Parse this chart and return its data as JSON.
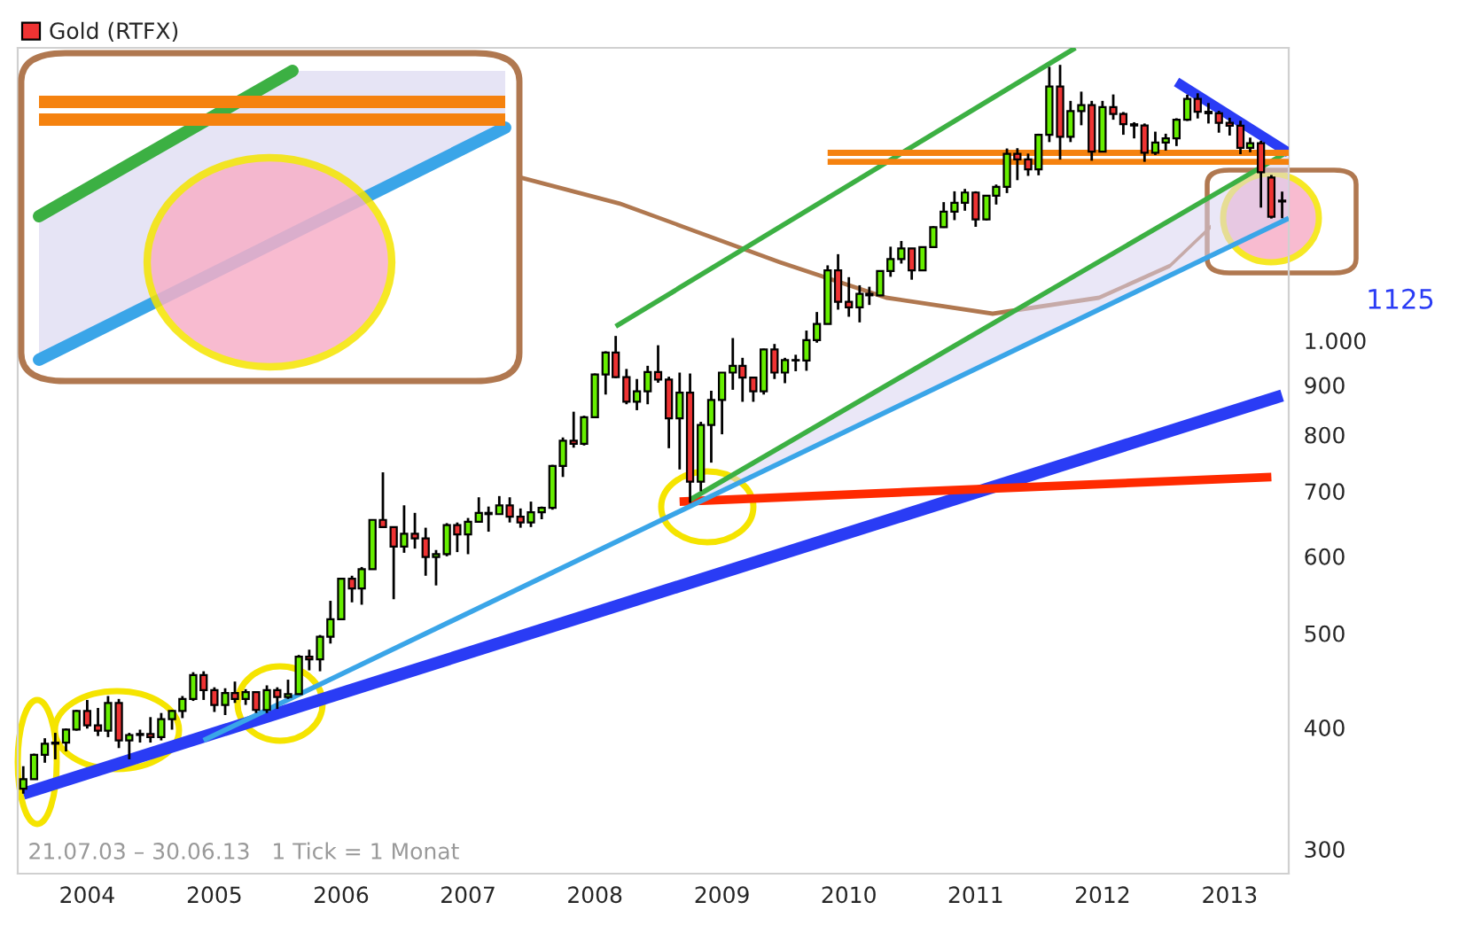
{
  "chart_data": {
    "type": "candlestick",
    "log": true,
    "legend": "top left",
    "grid": false,
    "xlim": [
      "2003-06-15",
      "2013-06-20"
    ],
    "xticks": [
      "2004",
      "2005",
      "2006",
      "2007",
      "2008",
      "2009",
      "2010",
      "2011",
      "2012",
      "2013"
    ],
    "ylim": [
      283,
      2000
    ],
    "yticks": [
      300,
      400,
      500,
      600,
      700,
      800,
      900,
      {
        "value": 1000,
        "label": "1.000"
      }
    ],
    "annotations": [
      "21.07.03 – 30.06.13   1 Tick = 1 Monat",
      "1125"
    ],
    "series": [
      {
        "name": "Gold (RTFX)",
        "color": "#ee3333",
        "colors": [
          "#66ee00",
          "#66ee00",
          "#66ee00",
          "#66ee00",
          "#66ee00",
          "#66ee00",
          "#ee3333",
          "#ee3333",
          "#66ee00",
          "#ee3333",
          "#66ee00",
          "#66ee00",
          "#ee3333",
          "#66ee00",
          "#66ee00",
          "#66ee00",
          "#66ee00",
          "#ee3333",
          "#ee3333",
          "#66ee00",
          "#ee3333",
          "#66ee00",
          "#ee3333",
          "#66ee00",
          "#ee3333",
          "#66ee00",
          "#66ee00",
          "#ee3333",
          "#66ee00",
          "#66ee00",
          "#66ee00",
          "#ee3333",
          "#66ee00",
          "#66ee00",
          "#ee3333",
          "#ee3333",
          "#66ee00",
          "#ee3333",
          "#ee3333",
          "#66ee00",
          "#66ee00",
          "#ee3333",
          "#66ee00",
          "#66ee00",
          "#ee3333",
          "#66ee00",
          "#ee3333",
          "#ee3333",
          "#66ee00",
          "#66ee00",
          "#66ee00",
          "#66ee00",
          "#ee3333",
          "#66ee00",
          "#66ee00",
          "#66ee00",
          "#ee3333",
          "#ee3333",
          "#66ee00",
          "#66ee00",
          "#ee3333",
          "#ee3333",
          "#66ee00",
          "#ee3333",
          "#66ee00",
          "#66ee00",
          "#66ee00",
          "#66ee00",
          "#ee3333",
          "#ee3333",
          "#66ee00",
          "#ee3333",
          "#66ee00",
          "#ee3333",
          "#66ee00",
          "#66ee00",
          "#66ee00",
          "#ee3333",
          "#ee3333",
          "#66ee00",
          "#ee3333",
          "#66ee00",
          "#66ee00",
          "#66ee00",
          "#ee3333",
          "#66ee00",
          "#66ee00",
          "#66ee00",
          "#66ee00",
          "#66ee00",
          "#ee3333",
          "#66ee00",
          "#66ee00",
          "#66ee00",
          "#ee3333",
          "#ee3333",
          "#66ee00",
          "#66ee00",
          "#ee3333",
          "#66ee00",
          "#66ee00",
          "#ee3333",
          "#66ee00",
          "#ee3333",
          "#ee3333",
          "#ee3333",
          "#ee3333",
          "#66ee00",
          "#66ee00",
          "#66ee00",
          "#66ee00",
          "#ee3333",
          "#ee3333",
          "#ee3333",
          "#ee3333",
          "#ee3333",
          "#66ee00",
          "#ee3333",
          "#ee3333",
          "#ee3333"
        ],
        "x": [
          "2003-07",
          "2003-08",
          "2003-09",
          "2003-10",
          "2003-11",
          "2003-12",
          "2004-01",
          "2004-02",
          "2004-03",
          "2004-04",
          "2004-05",
          "2004-06",
          "2004-07",
          "2004-08",
          "2004-09",
          "2004-10",
          "2004-11",
          "2004-12",
          "2005-01",
          "2005-02",
          "2005-03",
          "2005-04",
          "2005-05",
          "2005-06",
          "2005-07",
          "2005-08",
          "2005-09",
          "2005-10",
          "2005-11",
          "2005-12",
          "2006-01",
          "2006-02",
          "2006-03",
          "2006-04",
          "2006-05",
          "2006-06",
          "2006-07",
          "2006-08",
          "2006-09",
          "2006-10",
          "2006-11",
          "2006-12",
          "2007-01",
          "2007-02",
          "2007-03",
          "2007-04",
          "2007-05",
          "2007-06",
          "2007-07",
          "2007-08",
          "2007-09",
          "2007-10",
          "2007-11",
          "2007-12",
          "2008-01",
          "2008-02",
          "2008-03",
          "2008-04",
          "2008-05",
          "2008-06",
          "2008-07",
          "2008-08",
          "2008-09",
          "2008-10",
          "2008-11",
          "2008-12",
          "2009-01",
          "2009-02",
          "2009-03",
          "2009-04",
          "2009-05",
          "2009-06",
          "2009-07",
          "2009-08",
          "2009-09",
          "2009-10",
          "2009-11",
          "2009-12",
          "2010-01",
          "2010-02",
          "2010-03",
          "2010-04",
          "2010-05",
          "2010-06",
          "2010-07",
          "2010-08",
          "2010-09",
          "2010-10",
          "2010-11",
          "2010-12",
          "2011-01",
          "2011-02",
          "2011-03",
          "2011-04",
          "2011-05",
          "2011-06",
          "2011-07",
          "2011-08",
          "2011-09",
          "2011-10",
          "2011-11",
          "2011-12",
          "2012-01",
          "2012-02",
          "2012-03",
          "2012-04",
          "2012-05",
          "2012-06",
          "2012-07",
          "2012-08",
          "2012-09",
          "2012-10",
          "2012-11",
          "2012-12",
          "2013-01",
          "2013-02",
          "2013-03",
          "2013-04",
          "2013-05",
          "2013-06"
        ],
        "ohlc": [
          [
            346,
            365,
            342,
            354
          ],
          [
            354,
            376,
            354,
            375
          ],
          [
            375,
            390,
            368,
            385
          ],
          [
            385,
            395,
            371,
            386
          ],
          [
            386,
            399,
            378,
            398
          ],
          [
            398,
            417,
            397,
            416
          ],
          [
            416,
            427,
            399,
            402
          ],
          [
            402,
            419,
            392,
            397
          ],
          [
            397,
            431,
            391,
            424
          ],
          [
            424,
            428,
            381,
            388
          ],
          [
            388,
            395,
            371,
            393
          ],
          [
            393,
            398,
            386,
            394
          ],
          [
            394,
            410,
            386,
            391
          ],
          [
            391,
            414,
            388,
            408
          ],
          [
            408,
            417,
            398,
            416
          ],
          [
            416,
            431,
            409,
            428
          ],
          [
            428,
            456,
            426,
            453
          ],
          [
            453,
            457,
            427,
            437
          ],
          [
            437,
            440,
            415,
            422
          ],
          [
            422,
            439,
            412,
            434
          ],
          [
            434,
            446,
            424,
            428
          ],
          [
            428,
            438,
            422,
            435
          ],
          [
            435,
            436,
            414,
            417
          ],
          [
            417,
            442,
            414,
            437
          ],
          [
            437,
            440,
            418,
            430
          ],
          [
            430,
            448,
            428,
            433
          ],
          [
            433,
            475,
            433,
            473
          ],
          [
            473,
            481,
            458,
            470
          ],
          [
            470,
            498,
            457,
            496
          ],
          [
            496,
            540,
            488,
            517
          ],
          [
            517,
            570,
            516,
            569
          ],
          [
            569,
            573,
            538,
            556
          ],
          [
            556,
            585,
            535,
            582
          ],
          [
            582,
            654,
            582,
            654
          ],
          [
            654,
            732,
            642,
            643
          ],
          [
            643,
            643,
            542,
            614
          ],
          [
            614,
            677,
            605,
            633
          ],
          [
            633,
            665,
            611,
            626
          ],
          [
            626,
            642,
            573,
            599
          ],
          [
            599,
            609,
            560,
            603
          ],
          [
            603,
            649,
            600,
            646
          ],
          [
            646,
            650,
            606,
            632
          ],
          [
            632,
            657,
            603,
            651
          ],
          [
            651,
            690,
            650,
            665
          ],
          [
            665,
            675,
            636,
            663
          ],
          [
            663,
            692,
            662,
            677
          ],
          [
            677,
            690,
            650,
            659
          ],
          [
            659,
            672,
            642,
            650
          ],
          [
            650,
            683,
            643,
            666
          ],
          [
            666,
            675,
            655,
            673
          ],
          [
            673,
            745,
            670,
            743
          ],
          [
            743,
            795,
            724,
            789
          ],
          [
            789,
            845,
            776,
            783
          ],
          [
            783,
            837,
            780,
            834
          ],
          [
            834,
            925,
            833,
            923
          ],
          [
            923,
            975,
            880,
            972
          ],
          [
            972,
            1011,
            915,
            917
          ],
          [
            917,
            935,
            860,
            865
          ],
          [
            865,
            913,
            848,
            887
          ],
          [
            887,
            942,
            860,
            928
          ],
          [
            928,
            989,
            905,
            912
          ],
          [
            912,
            918,
            775,
            832
          ],
          [
            832,
            927,
            737,
            884
          ],
          [
            884,
            925,
            681,
            716
          ],
          [
            716,
            825,
            700,
            819
          ],
          [
            819,
            888,
            749,
            869
          ],
          [
            869,
            928,
            801,
            927
          ],
          [
            927,
            1006,
            890,
            942
          ],
          [
            942,
            960,
            865,
            916
          ],
          [
            916,
            917,
            865,
            887
          ],
          [
            887,
            981,
            880,
            979
          ],
          [
            979,
            992,
            913,
            927
          ],
          [
            927,
            960,
            904,
            955
          ],
          [
            955,
            967,
            930,
            954
          ],
          [
            954,
            1024,
            931,
            1001
          ],
          [
            1001,
            1070,
            995,
            1040
          ],
          [
            1040,
            1195,
            1040,
            1181
          ],
          [
            1181,
            1227,
            1076,
            1096
          ],
          [
            1096,
            1162,
            1058,
            1082
          ],
          [
            1082,
            1140,
            1044,
            1117
          ],
          [
            1117,
            1136,
            1088,
            1113
          ],
          [
            1113,
            1180,
            1111,
            1179
          ],
          [
            1179,
            1249,
            1163,
            1213
          ],
          [
            1213,
            1266,
            1200,
            1244
          ],
          [
            1244,
            1245,
            1155,
            1181
          ],
          [
            1181,
            1249,
            1180,
            1248
          ],
          [
            1248,
            1311,
            1245,
            1308
          ],
          [
            1308,
            1388,
            1306,
            1357
          ],
          [
            1357,
            1424,
            1330,
            1386
          ],
          [
            1386,
            1432,
            1360,
            1420
          ],
          [
            1420,
            1424,
            1309,
            1332
          ],
          [
            1332,
            1411,
            1329,
            1409
          ],
          [
            1409,
            1447,
            1380,
            1439
          ],
          [
            1439,
            1576,
            1418,
            1556
          ],
          [
            1556,
            1577,
            1462,
            1536
          ],
          [
            1536,
            1557,
            1477,
            1500
          ],
          [
            1500,
            1632,
            1479,
            1628
          ],
          [
            1628,
            1912,
            1600,
            1825
          ],
          [
            1825,
            1921,
            1535,
            1620
          ],
          [
            1620,
            1764,
            1600,
            1722
          ],
          [
            1722,
            1803,
            1665,
            1746
          ],
          [
            1746,
            1764,
            1531,
            1564
          ],
          [
            1564,
            1764,
            1564,
            1738
          ],
          [
            1738,
            1791,
            1687,
            1710
          ],
          [
            1710,
            1718,
            1628,
            1669
          ],
          [
            1669,
            1677,
            1614,
            1664
          ],
          [
            1664,
            1672,
            1527,
            1560
          ],
          [
            1560,
            1640,
            1552,
            1598
          ],
          [
            1598,
            1632,
            1568,
            1614
          ],
          [
            1614,
            1693,
            1585,
            1687
          ],
          [
            1687,
            1790,
            1682,
            1772
          ],
          [
            1772,
            1796,
            1692,
            1719
          ],
          [
            1719,
            1755,
            1672,
            1713
          ],
          [
            1713,
            1723,
            1636,
            1675
          ],
          [
            1675,
            1695,
            1625,
            1663
          ],
          [
            1663,
            1683,
            1555,
            1578
          ],
          [
            1578,
            1617,
            1562,
            1596
          ],
          [
            1596,
            1605,
            1370,
            1490
          ],
          [
            1471,
            1480,
            1335,
            1341
          ],
          [
            1393,
            1423,
            1336,
            1390
          ]
        ]
      },
      {
        "type": "line",
        "color": "#2a3cf5",
        "x": [
          "2003-07",
          "2013-06"
        ],
        "values": [
          342,
          878
        ]
      },
      {
        "type": "line",
        "color": "#ff2a00",
        "x": [
          "2008-09",
          "2013-05"
        ],
        "values": [
          683,
          724
        ]
      },
      {
        "type": "line",
        "color": "#3cb043",
        "x": [
          "2008-10",
          "2013-06-20"
        ],
        "values": [
          686,
          1566
        ],
        "lower": [
          680,
          1336
        ],
        "upper": [
          686,
          1566
        ]
      },
      {
        "type": "line",
        "color": "#3aa5e8",
        "x": [
          "2004-12",
          "2013-06-20"
        ],
        "values": [
          388,
          1336
        ]
      },
      {
        "type": "line",
        "color": "#3cb043",
        "x": [
          "2008-03",
          "2011-10-15"
        ],
        "values": [
          1034,
          2000
        ]
      },
      {
        "type": "line",
        "color": "#2a3cf5",
        "x": [
          "2012-08",
          "2013-06-20"
        ],
        "values": [
          1845,
          1560
        ]
      },
      {
        "type": "line",
        "color": "#f5820f",
        "x": [
          "2009-11",
          "2013-06-20"
        ],
        "values": [
          1560,
          1560
        ]
      },
      {
        "type": "line",
        "color": "#f5820f",
        "x": [
          "2009-11",
          "2013-06-20"
        ],
        "values": [
          1527,
          1527
        ]
      }
    ]
  }
}
